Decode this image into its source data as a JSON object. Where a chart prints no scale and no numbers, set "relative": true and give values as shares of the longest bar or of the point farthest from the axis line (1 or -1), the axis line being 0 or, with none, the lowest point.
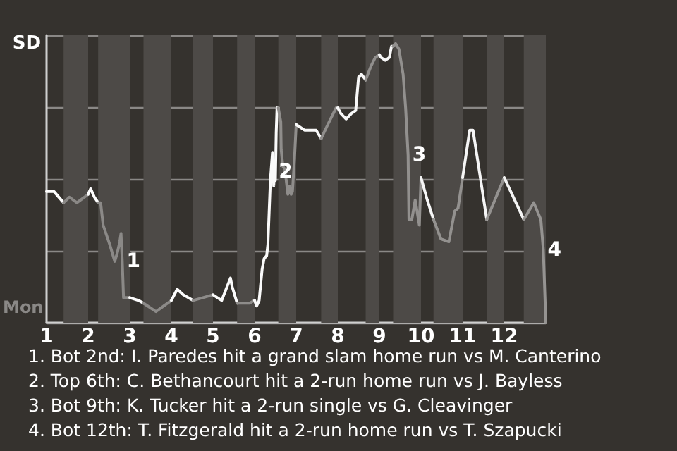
{
  "chart_data": {
    "type": "line",
    "relative": true,
    "xlim": [
      1,
      13
    ],
    "xticks": [
      1,
      2,
      3,
      4,
      5,
      6,
      7,
      8,
      9,
      10,
      11,
      12
    ],
    "grid": "y",
    "marker": "none",
    "line_style": "solid",
    "series": [
      {
        "color": "#ffffff",
        "x": [
          1,
          1.18,
          1.41
        ],
        "values": [
          0.47,
          0.47,
          0.43
        ]
      },
      {
        "color": "#8a8886",
        "x": [
          1.41,
          1.55,
          1.73,
          2
        ],
        "values": [
          0.43,
          0.45,
          0.43,
          0.46
        ]
      },
      {
        "color": "#fefefe",
        "x": [
          2,
          2.06,
          2.15,
          2.24
        ],
        "values": [
          0.46,
          0.48,
          0.45,
          0.43
        ]
      },
      {
        "color": "#8b8987",
        "x": [
          2.24,
          2.3,
          2.36,
          2.52,
          2.64,
          2.7,
          2.76,
          2.79,
          2.82,
          2.85,
          3
        ],
        "values": [
          0.43,
          0.43,
          0.35,
          0.28,
          0.22,
          0.25,
          0.29,
          0.32,
          0.22,
          0.09,
          0.09
        ]
      },
      {
        "color": "#fdfdfd",
        "x": [
          3,
          3.21,
          3.33
        ],
        "values": [
          0.09,
          0.08,
          0.07
        ]
      },
      {
        "color": "#8c8a88",
        "x": [
          3.33,
          3.63,
          4
        ],
        "values": [
          0.07,
          0.04,
          0.08
        ]
      },
      {
        "color": "#fcfcfc",
        "x": [
          4,
          4.14,
          4.29,
          4.52
        ],
        "values": [
          0.08,
          0.12,
          0.1,
          0.08
        ]
      },
      {
        "color": "#8d8b89",
        "x": [
          4.52,
          4.76,
          5
        ],
        "values": [
          0.08,
          0.09,
          0.1
        ]
      },
      {
        "color": "#fbfbfb",
        "x": [
          5,
          5.21,
          5.42,
          5.46,
          5.58
        ],
        "values": [
          0.1,
          0.08,
          0.16,
          0.13,
          0.07
        ]
      },
      {
        "color": "#8e8c8a",
        "x": [
          5.58,
          5.71,
          5.88,
          6
        ],
        "values": [
          0.07,
          0.07,
          0.07,
          0.08
        ]
      },
      {
        "color": "#fafafa",
        "x": [
          6,
          6.05,
          6.11,
          6.18,
          6.23,
          6.29,
          6.32,
          6.38,
          6.41,
          6.43,
          6.45,
          6.46,
          6.48,
          6.5,
          6.52,
          6.54,
          6.57
        ],
        "values": [
          0.08,
          0.06,
          0.08,
          0.19,
          0.23,
          0.24,
          0.28,
          0.51,
          0.57,
          0.61,
          0.55,
          0.49,
          0.54,
          0.51,
          0.68,
          0.77,
          0.77
        ]
      },
      {
        "color": "#8f8d8b",
        "x": [
          6.57,
          6.63,
          6.64,
          6.68,
          6.73,
          6.8,
          6.84,
          6.88,
          6.91,
          6.96,
          7
        ],
        "values": [
          0.77,
          0.72,
          0.62,
          0.56,
          0.55,
          0.46,
          0.49,
          0.46,
          0.47,
          0.59,
          0.71
        ]
      },
      {
        "color": "#f9f9f9",
        "x": [
          7,
          7.2,
          7.36,
          7.48,
          7.6
        ],
        "values": [
          0.71,
          0.69,
          0.69,
          0.69,
          0.66
        ]
      },
      {
        "color": "#908e8c",
        "x": [
          7.6,
          7.76,
          7.96,
          8
        ],
        "values": [
          0.66,
          0.71,
          0.77,
          0.77
        ]
      },
      {
        "color": "#f8f8f8",
        "x": [
          8,
          8.07,
          8.2,
          8.33,
          8.43,
          8.5,
          8.57,
          8.67
        ],
        "values": [
          0.77,
          0.75,
          0.73,
          0.75,
          0.76,
          0.88,
          0.89,
          0.87
        ]
      },
      {
        "color": "#918f8d",
        "x": [
          8.67,
          8.8,
          8.9,
          9
        ],
        "values": [
          0.87,
          0.92,
          0.95,
          0.96
        ]
      },
      {
        "color": "#f7f7f7",
        "x": [
          9,
          9.04,
          9.14,
          9.24,
          9.29,
          9.33
        ],
        "values": [
          0.96,
          0.95,
          0.94,
          0.95,
          0.99,
          0.99
        ]
      },
      {
        "color": "#92908e",
        "x": [
          9.33,
          9.39,
          9.47,
          9.57,
          9.63,
          9.69,
          9.71,
          9.78,
          9.86,
          9.96,
          10
        ],
        "values": [
          0.99,
          1,
          0.98,
          0.89,
          0.77,
          0.6,
          0.37,
          0.37,
          0.44,
          0.35,
          0.52
        ]
      },
      {
        "color": "#f6f6f6",
        "x": [
          10,
          10.15,
          10.3
        ],
        "values": [
          0.52,
          0.44,
          0.37
        ]
      },
      {
        "color": "#93918f",
        "x": [
          10.3,
          10.48,
          10.67,
          10.81,
          10.89,
          11
        ],
        "values": [
          0.37,
          0.3,
          0.29,
          0.4,
          0.41,
          0.52
        ]
      },
      {
        "color": "#f5f5f5",
        "x": [
          11,
          11.17,
          11.25,
          11.58
        ],
        "values": [
          0.52,
          0.69,
          0.69,
          0.37
        ]
      },
      {
        "color": "#949290",
        "x": [
          11.58,
          12
        ],
        "values": [
          0.37,
          0.52
        ]
      },
      {
        "color": "#f4f4f4",
        "x": [
          12,
          12.47
        ],
        "values": [
          0.52,
          0.37
        ]
      },
      {
        "color": "#959391",
        "x": [
          12.47,
          12.71,
          12.88,
          12.94,
          13
        ],
        "values": [
          0.37,
          0.43,
          0.37,
          0.26,
          0
        ]
      }
    ],
    "bands": [
      {
        "axis": "x",
        "from": 1.41,
        "to": 2,
        "color": "#4d4a47"
      },
      {
        "axis": "x",
        "from": 2.24,
        "to": 3,
        "color": "#4d4a47"
      },
      {
        "axis": "x",
        "from": 3.33,
        "to": 4,
        "color": "#4d4a47"
      },
      {
        "axis": "x",
        "from": 4.52,
        "to": 5,
        "color": "#4d4a47"
      },
      {
        "axis": "x",
        "from": 5.58,
        "to": 6,
        "color": "#4d4a47"
      },
      {
        "axis": "x",
        "from": 6.57,
        "to": 7,
        "color": "#4d4a47"
      },
      {
        "axis": "x",
        "from": 7.6,
        "to": 8,
        "color": "#4d4a47"
      },
      {
        "axis": "x",
        "from": 8.67,
        "to": 9,
        "color": "#4d4a47"
      },
      {
        "axis": "x",
        "from": 9.33,
        "to": 10,
        "color": "#4d4a47"
      },
      {
        "axis": "x",
        "from": 10.3,
        "to": 11,
        "color": "#4d4a47"
      },
      {
        "axis": "x",
        "from": 11.58,
        "to": 12,
        "color": "#4d4a47"
      },
      {
        "axis": "x",
        "from": 12.47,
        "to": 13,
        "color": "#4d4a47"
      }
    ],
    "annotations": [
      "SD",
      "Mon",
      {
        "text": "1",
        "x": 2.82,
        "y": 0.22
      },
      {
        "text": "2",
        "x": 6.48,
        "y": 0.54
      },
      {
        "text": "3",
        "x": 9.69,
        "y": 0.6
      },
      {
        "text": "4",
        "x": 12.94,
        "y": 0.26
      },
      "1. Bot 2nd: I. Paredes hit a grand slam home run vs M. Canterino",
      "2. Top 6th: C. Bethancourt hit a 2-run home run vs J. Bayless",
      "3. Bot 9th: K. Tucker hit a 2-run single vs G. Cleavinger",
      "4. Bot 12th: T. Fitzgerald hit a 2-run home run vs T. Szapucki"
    ]
  }
}
